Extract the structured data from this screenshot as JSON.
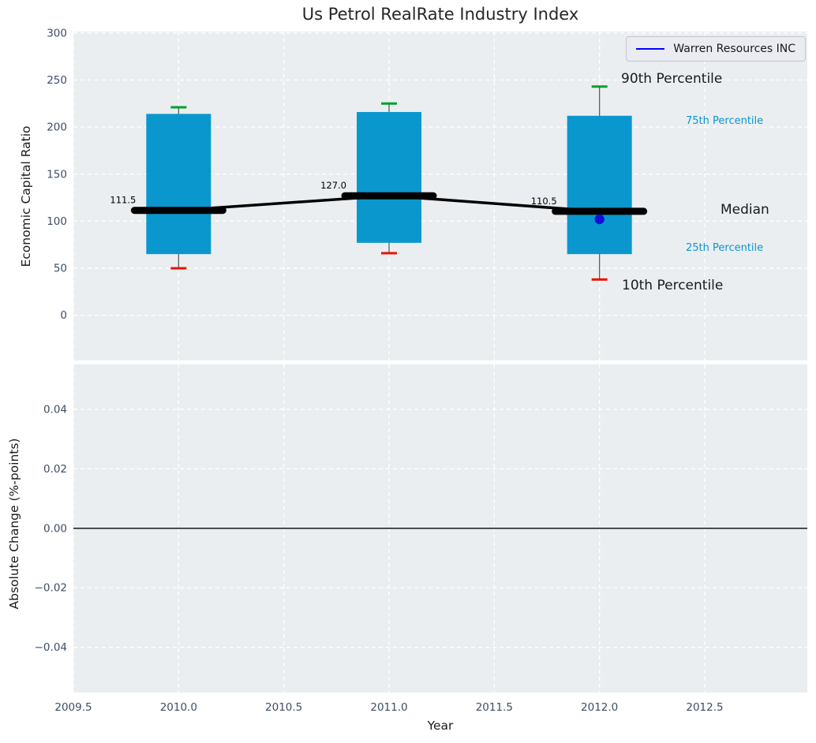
{
  "chart_data": [
    {
      "type": "boxplot",
      "title": "Us Petrol RealRate Industry Index",
      "ylabel": "Economic Capital Ratio",
      "xlim": [
        2009.5,
        2012.9875
      ],
      "ylim": [
        -48,
        301.5
      ],
      "grid": true,
      "xticks": {
        "values": [
          2009.5,
          2010.0,
          2010.5,
          2011.0,
          2011.5,
          2012.0,
          2012.5
        ],
        "labels": [
          "2009.5",
          "2010.0",
          "2010.5",
          "2011.0",
          "2011.5",
          "2012.0",
          "2012.5"
        ]
      },
      "yticks": {
        "values": [
          300,
          250,
          200,
          150,
          100,
          50,
          0
        ],
        "labels": [
          "300",
          "250",
          "200",
          "150",
          "100",
          "50",
          "0"
        ]
      },
      "boxes": [
        {
          "year": 2010,
          "p10": 50,
          "p25": 65,
          "median": 111.5,
          "p75": 214,
          "p90": 221,
          "median_label": "111.5"
        },
        {
          "year": 2011,
          "p10": 66,
          "p25": 77,
          "median": 127.0,
          "p75": 216,
          "p90": 225,
          "median_label": "127.0"
        },
        {
          "year": 2012,
          "p10": 38,
          "p25": 65,
          "median": 110.5,
          "p75": 212,
          "p90": 243,
          "median_label": "110.5"
        }
      ],
      "company_series": {
        "name": "Warren Resources INC",
        "points": [
          {
            "year": 2012,
            "value": 102
          }
        ]
      },
      "annotations": {
        "p90": {
          "label": "90th Percentile"
        },
        "p75": {
          "label": "75th Percentile"
        },
        "median": {
          "label": "Median"
        },
        "p25": {
          "label": "25th Percentile"
        },
        "p10": {
          "label": "10th Percentile"
        }
      },
      "colors": {
        "box_fill": "#0a97cd",
        "whisker": "#555555",
        "cap_high": "#00a02e",
        "cap_low": "#ee1100",
        "median_line": "#000000",
        "company_point": "#1010d8",
        "legend_line": "#0000ff",
        "panel_bg": "#eaeef0",
        "grid": "#ffffff",
        "tick_text": "#3d4d66"
      }
    },
    {
      "type": "line",
      "ylabel": "Absolute Change (%-points)",
      "xlabel": "Year",
      "ylim": [
        -0.0552,
        0.0551
      ],
      "grid": true,
      "zero_line": true,
      "yticks": {
        "values": [
          0.04,
          0.02,
          0.0,
          -0.02,
          -0.04
        ],
        "labels": [
          "0.04",
          "0.02",
          "0.00",
          "−0.02",
          "−0.04"
        ]
      },
      "series": []
    }
  ]
}
